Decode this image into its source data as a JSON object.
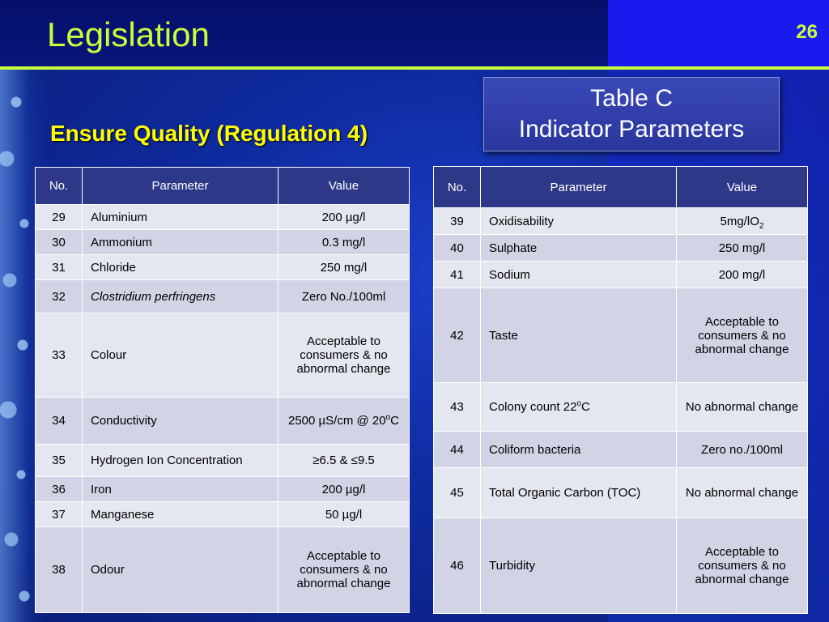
{
  "slide": {
    "title": "Legislation",
    "number": "26",
    "subtitle": "Ensure Quality (Regulation 4)",
    "box_line1": "Table C",
    "box_line2": "Indicator Parameters"
  },
  "columns": {
    "no": "No.",
    "parameter": "Parameter",
    "value": "Value"
  },
  "table_left": [
    {
      "no": "29",
      "parameter": "Aluminium",
      "value": "200 µg/l"
    },
    {
      "no": "30",
      "parameter": "Ammonium",
      "value": "0.3 mg/l"
    },
    {
      "no": "31",
      "parameter": "Chloride",
      "value": "250 mg/l"
    },
    {
      "no": "32",
      "parameter": "Clostridium perfringens",
      "value": "Zero No./100ml"
    },
    {
      "no": "33",
      "parameter": "Colour",
      "value": "Acceptable to consumers & no abnormal change"
    },
    {
      "no": "34",
      "parameter": "Conductivity",
      "value_main": "2500 µS/cm @ 20",
      "value_sup": "o",
      "value_tail": "C"
    },
    {
      "no": "35",
      "parameter": "Hydrogen Ion Concentration",
      "value": "≥6.5 & ≤9.5"
    },
    {
      "no": "36",
      "parameter": "Iron",
      "value": "200 µg/l"
    },
    {
      "no": "37",
      "parameter": "Manganese",
      "value": "50 µg/l"
    },
    {
      "no": "38",
      "parameter": "Odour",
      "value": "Acceptable to consumers & no abnormal change"
    }
  ],
  "table_right": [
    {
      "no": "39",
      "parameter": "Oxidisability",
      "value_main": "5mg/lO",
      "value_sub": "2"
    },
    {
      "no": "40",
      "parameter": "Sulphate",
      "value": "250 mg/l"
    },
    {
      "no": "41",
      "parameter": "Sodium",
      "value": "200 mg/l"
    },
    {
      "no": "42",
      "parameter": "Taste",
      "value": "Acceptable to consumers & no abnormal change"
    },
    {
      "no": "43",
      "parameter_main": "Colony count 22",
      "parameter_sup": "o",
      "parameter_tail": "C",
      "value": "No abnormal change"
    },
    {
      "no": "44",
      "parameter": "Coliform bacteria",
      "value": "Zero no./100ml"
    },
    {
      "no": "45",
      "parameter": "Total Organic Carbon (TOC)",
      "value": "No abnormal change"
    },
    {
      "no": "46",
      "parameter": "Turbidity",
      "value": "Acceptable to consumers & no abnormal change"
    }
  ]
}
